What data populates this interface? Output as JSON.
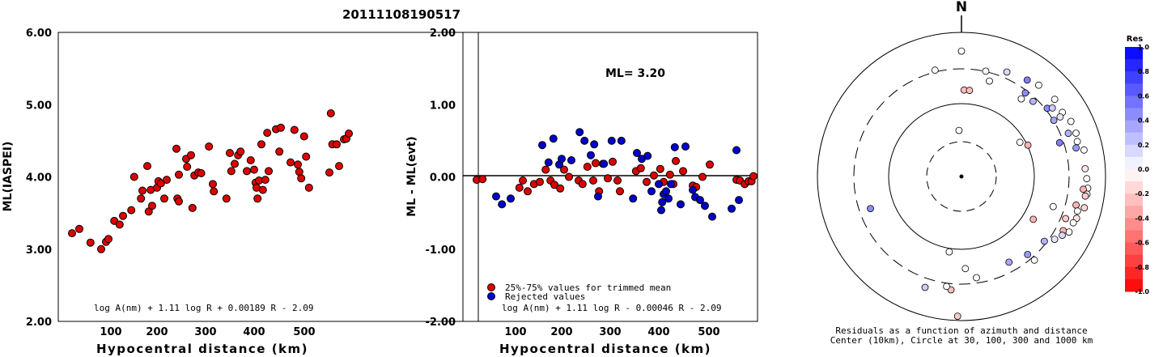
{
  "page_title": "20111108190517",
  "chart_data": [
    {
      "type": "scatter",
      "id": "ml-vs-distance",
      "title": "",
      "xlabel": "Hypocentral distance (km)",
      "ylabel": "ML(IASPEI)",
      "xlim": [
        0,
        590
      ],
      "ylim": [
        2.0,
        6.0
      ],
      "x_ticks": [
        "100",
        "200",
        "300",
        "400",
        "500"
      ],
      "y_ticks": [
        "2.00",
        "3.00",
        "4.00",
        "5.00",
        "6.00"
      ],
      "formula": "log A(nm) + 1.11 log R + 0.00189 R - 2.09",
      "point_color": "#dd0000",
      "points": [
        [
          20,
          3.22
        ],
        [
          35,
          3.28
        ],
        [
          58,
          3.09
        ],
        [
          80,
          3.0
        ],
        [
          90,
          3.1
        ],
        [
          95,
          3.14
        ],
        [
          107,
          3.39
        ],
        [
          118,
          3.34
        ],
        [
          125,
          3.46
        ],
        [
          142,
          3.54
        ],
        [
          148,
          4.0
        ],
        [
          162,
          3.7
        ],
        [
          165,
          3.81
        ],
        [
          175,
          4.15
        ],
        [
          178,
          3.52
        ],
        [
          182,
          3.82
        ],
        [
          185,
          3.6
        ],
        [
          195,
          3.85
        ],
        [
          198,
          3.94
        ],
        [
          203,
          3.91
        ],
        [
          210,
          3.7
        ],
        [
          215,
          3.96
        ],
        [
          235,
          4.39
        ],
        [
          237,
          3.7
        ],
        [
          240,
          3.66
        ],
        [
          240,
          4.03
        ],
        [
          255,
          4.25
        ],
        [
          257,
          4.14
        ],
        [
          265,
          4.3
        ],
        [
          268,
          3.57
        ],
        [
          272,
          4.02
        ],
        [
          280,
          4.06
        ],
        [
          286,
          4.05
        ],
        [
          302,
          4.42
        ],
        [
          310,
          3.9
        ],
        [
          312,
          3.8
        ],
        [
          338,
          3.7
        ],
        [
          345,
          4.33
        ],
        [
          348,
          4.08
        ],
        [
          355,
          4.18
        ],
        [
          362,
          4.3
        ],
        [
          367,
          4.35
        ],
        [
          380,
          4.08
        ],
        [
          388,
          4.23
        ],
        [
          395,
          4.1
        ],
        [
          398,
          3.92
        ],
        [
          400,
          3.85
        ],
        [
          402,
          3.7
        ],
        [
          405,
          3.95
        ],
        [
          410,
          4.45
        ],
        [
          413,
          3.82
        ],
        [
          418,
          3.96
        ],
        [
          422,
          4.61
        ],
        [
          425,
          4.08
        ],
        [
          440,
          4.66
        ],
        [
          447,
          4.35
        ],
        [
          450,
          4.68
        ],
        [
          470,
          4.2
        ],
        [
          478,
          4.65
        ],
        [
          485,
          4.17
        ],
        [
          488,
          4.07
        ],
        [
          492,
          3.98
        ],
        [
          498,
          4.56
        ],
        [
          502,
          4.28
        ],
        [
          508,
          3.85
        ],
        [
          550,
          4.06
        ],
        [
          553,
          4.88
        ],
        [
          556,
          4.45
        ],
        [
          565,
          4.45
        ],
        [
          570,
          4.15
        ],
        [
          580,
          4.52
        ],
        [
          585,
          4.53
        ],
        [
          590,
          4.6
        ]
      ]
    },
    {
      "type": "scatter",
      "id": "residual-vs-distance",
      "title": "",
      "xlabel": "Hypocentral distance (km)",
      "ylabel": "ML - ML(evt)",
      "xlim": [
        0,
        590
      ],
      "ylim": [
        -2.0,
        2.0
      ],
      "x_ticks": [
        "100",
        "200",
        "300",
        "400",
        "500"
      ],
      "y_ticks": [
        "-2.00",
        "-1.00",
        "0.00",
        "1.00",
        "2.00"
      ],
      "annotation": "ML= 3.20",
      "formula": "log A(nm) + 1.11 log R - 0.00046 R - 2.09",
      "legend": [
        {
          "label": "25%-75% values for trimmed mean",
          "color": "#dd0000"
        },
        {
          "label": "Rejected values",
          "color": "#0000cc"
        }
      ],
      "series": [
        {
          "name": "25%-75% values for trimmed mean",
          "color": "#dd0000",
          "points": [
            [
              20,
              -0.04
            ],
            [
              32,
              -0.03
            ],
            [
              108,
              -0.15
            ],
            [
              115,
              -0.05
            ],
            [
              125,
              -0.2
            ],
            [
              138,
              -0.1
            ],
            [
              150,
              -0.07
            ],
            [
              162,
              0.1
            ],
            [
              172,
              -0.05
            ],
            [
              180,
              -0.11
            ],
            [
              192,
              -0.16
            ],
            [
              200,
              0.1
            ],
            [
              210,
              0.0
            ],
            [
              230,
              -0.05
            ],
            [
              238,
              -0.1
            ],
            [
              248,
              0.14
            ],
            [
              260,
              -0.05
            ],
            [
              265,
              0.19
            ],
            [
              272,
              -0.2
            ],
            [
              280,
              0.18
            ],
            [
              290,
              -0.02
            ],
            [
              300,
              0.21
            ],
            [
              310,
              -0.05
            ],
            [
              315,
              -0.2
            ],
            [
              348,
              0.08
            ],
            [
              358,
              0.12
            ],
            [
              370,
              -0.07
            ],
            [
              385,
              0.02
            ],
            [
              398,
              0.11
            ],
            [
              405,
              -0.07
            ],
            [
              418,
              0.03
            ],
            [
              425,
              -0.1
            ],
            [
              430,
              0.22
            ],
            [
              445,
              0.08
            ],
            [
              465,
              -0.12
            ],
            [
              472,
              -0.14
            ],
            [
              485,
              0.0
            ],
            [
              500,
              0.17
            ],
            [
              555,
              -0.04
            ],
            [
              562,
              -0.05
            ],
            [
              572,
              -0.1
            ],
            [
              580,
              -0.06
            ],
            [
              586,
              -0.06
            ],
            [
              590,
              0.01
            ]
          ]
        },
        {
          "name": "Rejected values",
          "color": "#0000cc",
          "points": [
            [
              60,
              -0.27
            ],
            [
              72,
              -0.38
            ],
            [
              90,
              -0.3
            ],
            [
              155,
              0.44
            ],
            [
              168,
              0.2
            ],
            [
              178,
              0.53
            ],
            [
              190,
              0.17
            ],
            [
              195,
              0.25
            ],
            [
              215,
              0.23
            ],
            [
              232,
              0.62
            ],
            [
              242,
              0.5
            ],
            [
              255,
              0.3
            ],
            [
              262,
              0.45
            ],
            [
              270,
              -0.27
            ],
            [
              282,
              0.18
            ],
            [
              298,
              0.5
            ],
            [
              318,
              0.5
            ],
            [
              342,
              -0.3
            ],
            [
              350,
              0.33
            ],
            [
              360,
              0.25
            ],
            [
              372,
              0.29
            ],
            [
              380,
              -0.2
            ],
            [
              395,
              -0.1
            ],
            [
              400,
              -0.46
            ],
            [
              402,
              -0.35
            ],
            [
              405,
              -0.24
            ],
            [
              410,
              -0.2
            ],
            [
              415,
              -0.3
            ],
            [
              420,
              -0.1
            ],
            [
              428,
              0.41
            ],
            [
              440,
              -0.38
            ],
            [
              450,
              0.42
            ],
            [
              465,
              -0.18
            ],
            [
              470,
              -0.28
            ],
            [
              480,
              -0.32
            ],
            [
              490,
              -0.4
            ],
            [
              505,
              -0.55
            ],
            [
              545,
              -0.44
            ],
            [
              555,
              0.37
            ],
            [
              560,
              -0.32
            ]
          ]
        }
      ]
    },
    {
      "type": "scatter",
      "id": "residual-azimuth-map",
      "title": "N",
      "caption": [
        "Residuals as a function of azimuth and distance",
        "Center (10km), Circle at 30, 100, 300 and 1000 km"
      ],
      "colorbar": {
        "title": "Res",
        "labels": [
          "1.0",
          "0.8",
          "0.6",
          "0.4",
          "0.2",
          "0.0",
          "-0.2",
          "-0.4",
          "-0.6",
          "-0.8",
          "-1.0"
        ],
        "range": [
          -1.0,
          1.0
        ],
        "positive_color": "#0000ff",
        "negative_color": "#ff0000"
      },
      "points_azimuth_deg_residual": [
        [
          1.7,
          0.6,
          -0.25
        ],
        [
          5.3,
          0.6,
          -0.25
        ],
        [
          0.0,
          0.87,
          0.0
        ],
        [
          -14.0,
          0.76,
          0.0
        ],
        [
          16.3,
          0.69,
          0.0
        ],
        [
          13.0,
          0.75,
          0.0
        ],
        [
          23.5,
          0.79,
          0.15
        ],
        [
          34.3,
          0.81,
          0.5
        ],
        [
          37.4,
          0.73,
          0.45
        ],
        [
          40.2,
          0.83,
          0.0
        ],
        [
          43.6,
          0.72,
          0.3
        ],
        [
          50.4,
          0.84,
          0.0
        ],
        [
          51.5,
          0.76,
          0.45
        ],
        [
          53.0,
          0.79,
          0.2
        ],
        [
          57.6,
          0.83,
          0.0
        ],
        [
          58.9,
          0.8,
          0.1
        ],
        [
          58.7,
          0.75,
          0.35
        ],
        [
          63.3,
          0.85,
          0.0
        ],
        [
          68.0,
          0.8,
          0.3
        ],
        [
          69.3,
          0.85,
          0.0
        ],
        [
          73.2,
          0.84,
          0.0
        ],
        [
          77.8,
          0.87,
          0.0
        ],
        [
          76.0,
          0.82,
          0.4
        ],
        [
          71.0,
          0.72,
          0.5
        ],
        [
          86.4,
          0.86,
          -0.1
        ],
        [
          91.0,
          0.87,
          0.0
        ],
        [
          95.3,
          0.88,
          0.0
        ],
        [
          96.0,
          0.85,
          -0.3
        ],
        [
          98.0,
          0.88,
          -0.1
        ],
        [
          99.0,
          0.87,
          -0.2
        ],
        [
          104.3,
          0.88,
          -0.15
        ],
        [
          104.0,
          0.82,
          -0.3
        ],
        [
          106.6,
          0.84,
          0.0
        ],
        [
          110.0,
          0.85,
          -0.1
        ],
        [
          112.5,
          0.84,
          0.0
        ],
        [
          112.0,
          0.78,
          -0.2
        ],
        [
          117.3,
          0.84,
          0.0
        ],
        [
          118.0,
          0.8,
          -0.3
        ],
        [
          120.3,
          0.81,
          0.15
        ],
        [
          124.0,
          0.78,
          0.1
        ],
        [
          128.0,
          0.73,
          0.3
        ],
        [
          139.7,
          0.71,
          0.4
        ],
        [
          138.9,
          0.77,
          0.0
        ],
        [
          120.8,
          0.58,
          -0.3
        ],
        [
          108.2,
          0.67,
          0.0
        ],
        [
          64.8,
          0.51,
          -0.3
        ],
        [
          59.7,
          0.47,
          0.0
        ],
        [
          37.6,
          0.68,
          0.0
        ],
        [
          -178.4,
          0.97,
          -0.2
        ],
        [
          -174.7,
          0.79,
          -0.25
        ],
        [
          -172.3,
          0.77,
          0.0
        ],
        [
          -161.8,
          0.81,
          0.2
        ],
        [
          171.6,
          0.71,
          0.0
        ],
        [
          151.0,
          0.68,
          0.35
        ],
        [
          177.6,
          0.64,
          0.0
        ],
        [
          -109.4,
          0.67,
          0.45
        ],
        [
          -3.1,
          0.32,
          0.0
        ],
        [
          -170.8,
          0.53,
          0.0
        ]
      ]
    }
  ]
}
